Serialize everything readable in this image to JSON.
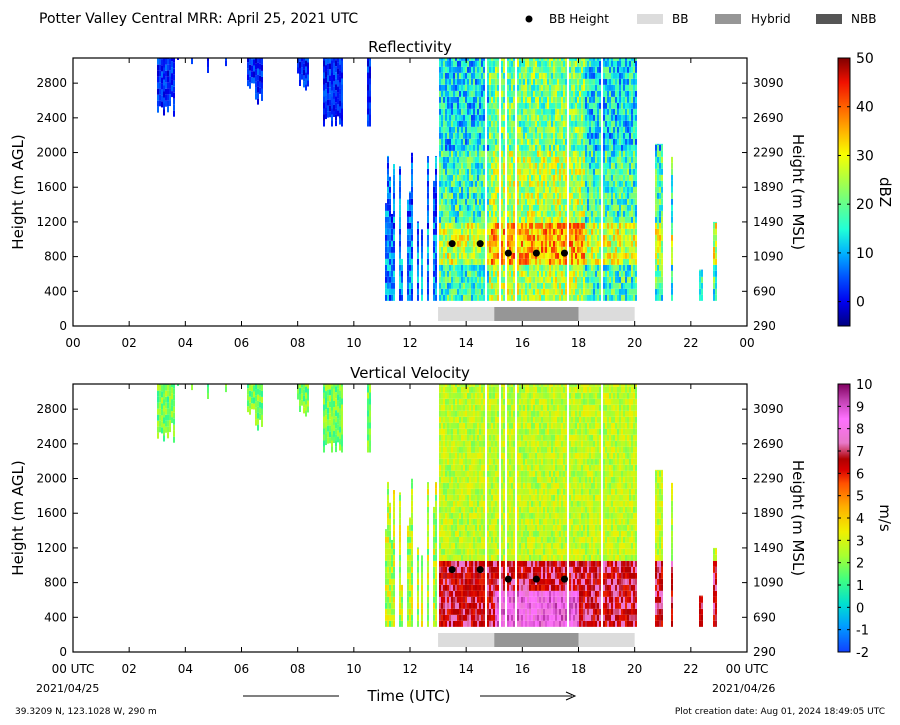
{
  "header": {
    "title": "Potter Valley Central MRR:  April 25, 2021 UTC",
    "legend": [
      {
        "label": "BB Height",
        "kind": "dot",
        "color": "#000000"
      },
      {
        "label": "BB",
        "kind": "box",
        "color": "#dcdcdc"
      },
      {
        "label": "Hybrid",
        "kind": "box",
        "color": "#969696"
      },
      {
        "label": "NBB",
        "kind": "box",
        "color": "#555555"
      }
    ]
  },
  "footer": {
    "location": "39.3209 N, 123.1028 W, 290 m",
    "creation": "Plot creation date: Aug 01, 2024 18:49:05 UTC",
    "xlabel": "Time (UTC)",
    "start_date": "2021/04/25",
    "end_date": "2021/04/26"
  },
  "chart_data": [
    {
      "type": "heatmap",
      "title": "Reflectivity",
      "ylabel": "Height (m AGL)",
      "ylabel_right": "Height (m MSL)",
      "colorbar_label": "dBZ",
      "colorbar_range": [
        -5,
        50
      ],
      "colorbar_ticks": [
        "0",
        "10",
        "20",
        "30",
        "40",
        "50"
      ],
      "xlim": [
        0,
        24
      ],
      "ylim": [
        0,
        3090
      ],
      "x_ticks": [
        "00",
        "02",
        "04",
        "06",
        "08",
        "10",
        "12",
        "14",
        "16",
        "18",
        "20",
        "22",
        "00"
      ],
      "y_ticks": [
        "0",
        "400",
        "800",
        "1200",
        "1600",
        "2000",
        "2400",
        "2800"
      ],
      "y_ticks_right": [
        "290",
        "690",
        "1090",
        "1490",
        "1890",
        "2290",
        "2690",
        "3090"
      ],
      "bb_height": [
        {
          "x": 13.5,
          "y": 950
        },
        {
          "x": 14.5,
          "y": 950
        },
        {
          "x": 15.5,
          "y": 840
        },
        {
          "x": 16.5,
          "y": 840
        },
        {
          "x": 17.5,
          "y": 840
        }
      ],
      "rain_type": [
        {
          "type": "BB",
          "start": 13.0,
          "end": 15.0
        },
        {
          "type": "Hybrid",
          "start": 15.0,
          "end": 18.0
        },
        {
          "type": "BB",
          "start": 18.0,
          "end": 20.0
        }
      ]
    },
    {
      "type": "heatmap",
      "title": "Vertical Velocity",
      "ylabel": "Height (m AGL)",
      "ylabel_right": "Height (m MSL)",
      "colorbar_label": "m/s",
      "colorbar_range": [
        -2,
        10
      ],
      "colorbar_ticks": [
        "-2",
        "-1",
        "0",
        "1",
        "2",
        "3",
        "4",
        "5",
        "6",
        "7",
        "8",
        "9",
        "10"
      ],
      "xlim": [
        0,
        24
      ],
      "ylim": [
        0,
        3090
      ],
      "x_ticks": [
        "00 UTC",
        "02",
        "04",
        "06",
        "08",
        "10",
        "12",
        "14",
        "16",
        "18",
        "20",
        "22",
        "00 UTC"
      ],
      "y_ticks": [
        "0",
        "400",
        "800",
        "1200",
        "1600",
        "2000",
        "2400",
        "2800"
      ],
      "y_ticks_right": [
        "290",
        "690",
        "1090",
        "1490",
        "1890",
        "2290",
        "2690",
        "3090"
      ],
      "bb_height": [
        {
          "x": 13.5,
          "y": 950
        },
        {
          "x": 14.5,
          "y": 950
        },
        {
          "x": 15.5,
          "y": 840
        },
        {
          "x": 16.5,
          "y": 840
        },
        {
          "x": 17.5,
          "y": 840
        }
      ],
      "rain_type": [
        {
          "type": "BB",
          "start": 13.0,
          "end": 15.0
        },
        {
          "type": "Hybrid",
          "start": 15.0,
          "end": 18.0
        },
        {
          "type": "BB",
          "start": 18.0,
          "end": 20.0
        }
      ]
    }
  ]
}
